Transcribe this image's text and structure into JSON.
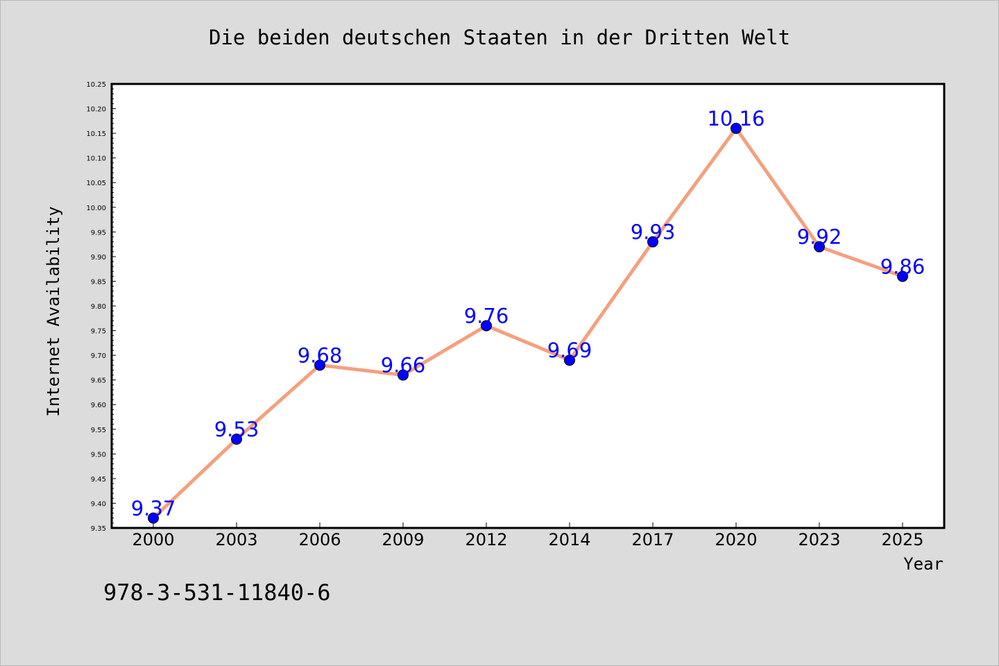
{
  "chart_data": {
    "type": "line",
    "title": "Die beiden deutschen Staaten in der Dritten Welt",
    "xlabel": "Year",
    "ylabel": "Internet Availability",
    "categories": [
      "2000",
      "2003",
      "2006",
      "2009",
      "2012",
      "2014",
      "2017",
      "2020",
      "2023",
      "2025"
    ],
    "series": [
      {
        "values": [
          9.37,
          9.53,
          9.68,
          9.66,
          9.76,
          9.69,
          9.93,
          10.16,
          9.92,
          9.86
        ],
        "data_labels": [
          "9.37",
          "9.53",
          "9.68",
          "9.66",
          "9.76",
          "9.69",
          "9.93",
          "10.16",
          "9.92",
          "9.86"
        ],
        "line_color": "#f4a07e",
        "marker_color": "#0000ff"
      }
    ],
    "ylim": [
      9.35,
      10.25
    ],
    "yticks": [
      "9.35",
      "9.40",
      "9.45",
      "9.50",
      "9.55",
      "9.60",
      "9.65",
      "9.70",
      "9.75",
      "9.80",
      "9.85",
      "9.90",
      "9.95",
      "10.00",
      "10.05",
      "10.10",
      "10.15",
      "10.20",
      "10.25"
    ],
    "grid": false,
    "label_color": "#0000ff"
  },
  "footer": {
    "isbn": "978-3-531-11840-6"
  }
}
